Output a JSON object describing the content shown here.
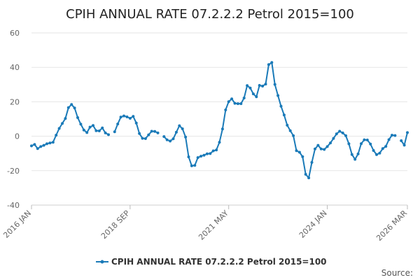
{
  "chart_data": {
    "type": "line",
    "title": "CPIH ANNUAL RATE 07.2.2.2 Petrol 2015=100",
    "xlabel": "",
    "ylabel": "",
    "ylim": [
      -40,
      60
    ],
    "yticks": [
      -40,
      -20,
      0,
      20,
      40,
      60
    ],
    "xticks": [
      {
        "label": "2016 JAN",
        "index": 0
      },
      {
        "label": "2018 SEP",
        "index": 32
      },
      {
        "label": "2021 MAY",
        "index": 64
      },
      {
        "label": "2024 JAN",
        "index": 96
      },
      {
        "label": "2026 MAR",
        "index": 122
      }
    ],
    "grid": true,
    "legend_position": "bottom",
    "series": [
      {
        "name": "CPIH ANNUAL RATE 07.2.2.2 Petrol 2015=100",
        "color": "#1a7ab8",
        "values": [
          -5.6,
          -4.8,
          -7.2,
          -6.0,
          -5.3,
          -4.4,
          -3.9,
          -3.5,
          0.6,
          4.5,
          7.4,
          10.3,
          16.6,
          18.4,
          16.4,
          10.8,
          7.0,
          3.6,
          2.1,
          5.3,
          6.2,
          3.2,
          3.1,
          4.8,
          1.9,
          0.9,
          null,
          2.6,
          7.1,
          11.1,
          11.8,
          11.2,
          10.4,
          11.5,
          7.7,
          1.6,
          -1.2,
          -1.4,
          0.8,
          2.9,
          2.8,
          1.9,
          null,
          -0.2,
          -2.1,
          -2.8,
          -1.5,
          2.3,
          6.1,
          4.3,
          -0.5,
          -12.0,
          -17.2,
          -16.9,
          -12.4,
          -11.6,
          -11.0,
          -10.2,
          -10.1,
          -8.5,
          -8.0,
          -3.5,
          4.2,
          15.3,
          20.1,
          21.7,
          19.1,
          18.9,
          18.9,
          22.2,
          29.4,
          28.0,
          24.6,
          22.9,
          29.5,
          29.1,
          30.3,
          41.6,
          42.8,
          30.1,
          23.6,
          17.4,
          12.3,
          6.4,
          3.2,
          0.3,
          -8.4,
          -9.3,
          -11.9,
          -22.1,
          -24.2,
          -15.2,
          -7.4,
          -5.3,
          -7.4,
          -7.7,
          -6.0,
          -3.9,
          -1.3,
          1.4,
          2.9,
          1.9,
          0.3,
          -4.4,
          -10.6,
          -13.4,
          -10.3,
          -4.3,
          -2.1,
          -2.2,
          -4.5,
          -8.3,
          -10.7,
          -9.8,
          -7.2,
          -5.9,
          -2.0,
          0.6,
          0.4,
          null,
          -2.6,
          -5.2,
          2.1
        ]
      }
    ],
    "legend": "CPIH ANNUAL RATE 07.2.2.2 Petrol 2015=100",
    "source_label": "Source:"
  }
}
